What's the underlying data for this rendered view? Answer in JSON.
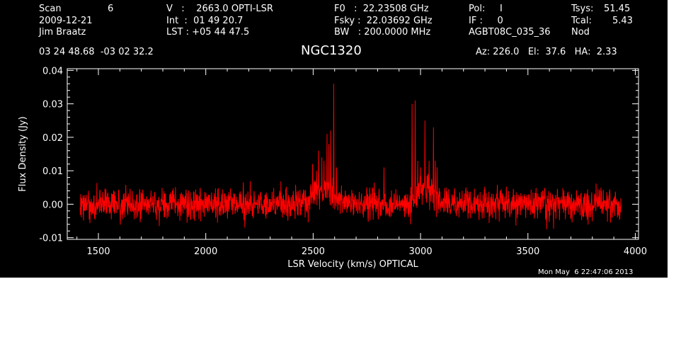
{
  "header": {
    "scan_label": "Scan",
    "scan_value": "6",
    "date": "2009-12-21",
    "observer": "Jim Braatz",
    "v_line": "V   :    2663.0 OPTI-LSR",
    "int_line": "Int  :  01 49 20.7",
    "lst_line": "LST : +05 44 47.5",
    "f0_line": "F0   :  22.23508 GHz",
    "fsky_line": "Fsky :  22.03692 GHz",
    "bw_line": "BW   : 200.0000 MHz",
    "pol_line": "Pol:     I",
    "if_line": "IF :     0",
    "project": "AGBT08C_035_36",
    "tsys_label": "Tsys:",
    "tsys_value": "51.45",
    "tcal_label": "Tcal:",
    "tcal_value": "5.43",
    "mode": "Nod",
    "coords": "03 24 48.68  -03 02 32.2",
    "source": "NGC1320",
    "azelha": "Az: 226.0   El:  37.6   HA:  2.33"
  },
  "footer": {
    "timestamp": "Mon May  6 22:47:06 2013"
  },
  "colors": {
    "background": "#000000",
    "axes": "#ffffff",
    "trace": "#ff0000"
  },
  "chart_data": {
    "type": "line",
    "title": "NGC1320",
    "xlabel": "LSR Velocity (km/s) OPTICAL",
    "ylabel": "Flux Density (Jy)",
    "xlim": [
      1355,
      4015
    ],
    "ylim": [
      -0.0105,
      0.0405
    ],
    "xticks": [
      1500,
      2000,
      2500,
      3000,
      3500,
      4000
    ],
    "xtick_labels": [
      "1500",
      "2000",
      "2500",
      "3000",
      "3500",
      "4000"
    ],
    "yticks": [
      -0.01,
      0.0,
      0.01,
      0.02,
      0.03,
      0.04
    ],
    "ytick_labels": [
      "-0.01",
      "0.00",
      "0.01",
      "0.02",
      "0.03",
      "0.04"
    ],
    "series": [
      {
        "velocity_range": [
          1415,
          3935
        ],
        "velocity_step": 1.2,
        "noise_rms": 0.0023,
        "baseline": 0.0,
        "broad_components": [
          {
            "center": 2545,
            "width": 40,
            "amplitude": 0.0045
          },
          {
            "center": 3025,
            "width": 35,
            "amplitude": 0.0045
          }
        ],
        "maser_lines": [
          {
            "velocity": 2497,
            "peak": 0.012
          },
          {
            "velocity": 2515,
            "peak": 0.01
          },
          {
            "velocity": 2525,
            "peak": 0.016
          },
          {
            "velocity": 2540,
            "peak": 0.014
          },
          {
            "velocity": 2550,
            "peak": 0.013
          },
          {
            "velocity": 2565,
            "peak": 0.021
          },
          {
            "velocity": 2573,
            "peak": 0.018
          },
          {
            "velocity": 2581,
            "peak": 0.022
          },
          {
            "velocity": 2596,
            "peak": 0.036
          },
          {
            "velocity": 2609,
            "peak": 0.011
          },
          {
            "velocity": 2830,
            "peak": 0.011
          },
          {
            "velocity": 2960,
            "peak": 0.03
          },
          {
            "velocity": 2975,
            "peak": 0.031
          },
          {
            "velocity": 2987,
            "peak": 0.013
          },
          {
            "velocity": 3000,
            "peak": 0.011
          },
          {
            "velocity": 3020,
            "peak": 0.025
          },
          {
            "velocity": 3040,
            "peak": 0.013
          },
          {
            "velocity": 3060,
            "peak": 0.023
          },
          {
            "velocity": 3068,
            "peak": 0.013
          },
          {
            "velocity": 3077,
            "peak": 0.011
          }
        ]
      }
    ]
  }
}
